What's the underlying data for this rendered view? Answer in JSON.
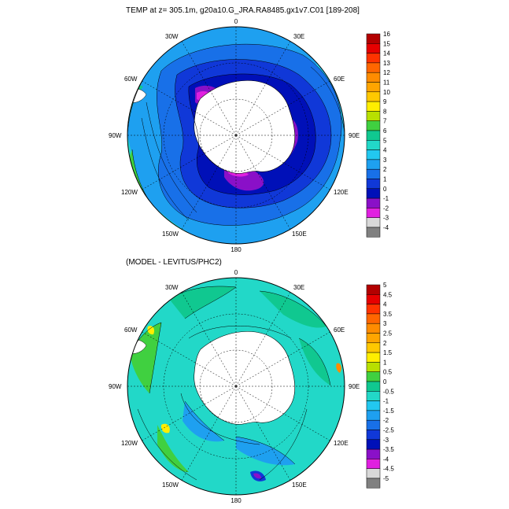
{
  "title": "TEMP at z= 305.1m, g20a10.G_JRA.RA8485.gx1v7.C01 [189-208]",
  "subtitle": "(MODEL - LEVITUS/PHC2)",
  "lon_labels": {
    "lon0": "0",
    "lon30e": "30E",
    "lon60e": "60E",
    "lon90e": "90E",
    "lon120e": "120E",
    "lon150e": "150E",
    "lon180": "180",
    "lon150w": "150W",
    "lon120w": "120W",
    "lon90w": "90W",
    "lon60w": "60W",
    "lon30w": "30W"
  },
  "map_top": {
    "variable": "TEMP",
    "colorbar": {
      "levels": [
        "16",
        "15",
        "14",
        "13",
        "12",
        "11",
        "10",
        "9",
        "8",
        "7",
        "6",
        "5",
        "4",
        "3",
        "2",
        "1",
        "0",
        "-1",
        "-2",
        "-3",
        "-4"
      ],
      "colors": [
        "#b30000",
        "#e60000",
        "#ff3300",
        "#ff6600",
        "#ff8c00",
        "#ffa500",
        "#ffc800",
        "#ffee00",
        "#b8e000",
        "#40d040",
        "#10c890",
        "#22d8c8",
        "#22c8f0",
        "#1ea0f0",
        "#1870e8",
        "#1038d8",
        "#0010b8",
        "#8a10c8",
        "#e020e0",
        "#d8d8d8",
        "#808080"
      ]
    }
  },
  "map_bottom": {
    "variable": "MODEL - LEVITUS/PHC2",
    "colorbar": {
      "levels": [
        "5",
        "4.5",
        "4",
        "3.5",
        "3",
        "2.5",
        "2",
        "1.5",
        "1",
        "0.5",
        "0",
        "-0.5",
        "-1",
        "-1.5",
        "-2",
        "-2.5",
        "-3",
        "-3.5",
        "-4",
        "-4.5",
        "-5"
      ],
      "colors": [
        "#b30000",
        "#e60000",
        "#ff3300",
        "#ff6600",
        "#ff8c00",
        "#ffa500",
        "#ffc800",
        "#ffee00",
        "#b8e000",
        "#40d040",
        "#10c890",
        "#22d8c8",
        "#22c8f0",
        "#1ea0f0",
        "#1870e8",
        "#1038d8",
        "#0010b8",
        "#8a10c8",
        "#e020e0",
        "#d8d8d8",
        "#808080"
      ]
    }
  }
}
